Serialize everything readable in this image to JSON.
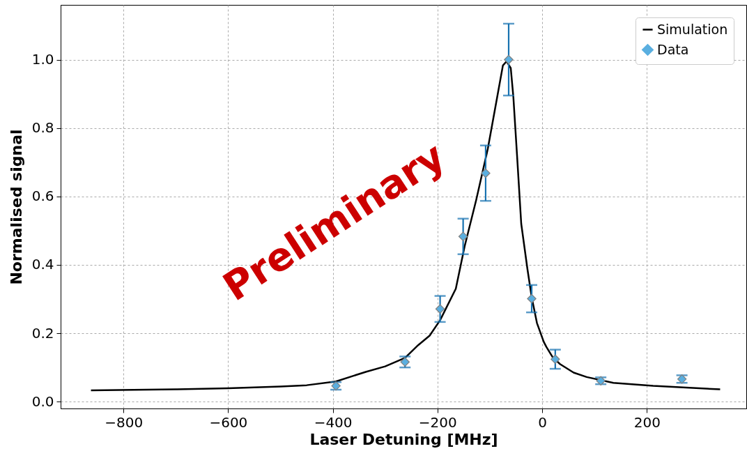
{
  "chart_data": {
    "type": "scatter",
    "xlabel": "Laser Detuning [MHz]",
    "ylabel": "Normalised signal",
    "annotations": [
      "Preliminary"
    ],
    "xlim": [
      -920,
      390
    ],
    "ylim": [
      -0.02,
      1.16
    ],
    "xticks": [
      -800,
      -600,
      -400,
      -200,
      0,
      200
    ],
    "yticks": [
      {
        "value": 0,
        "label": "0.0"
      },
      0.2,
      0.4,
      0.6,
      0.8,
      {
        "value": 1,
        "label": "1.0"
      }
    ],
    "grid": true,
    "legend": "top right",
    "series": [
      {
        "name": "Simulation",
        "type": "line",
        "color": "#000000",
        "line_style": "solid",
        "x": [
          -862,
          -700,
          -600,
          -500,
          -450,
          -394,
          -337,
          -300,
          -262,
          -237,
          -215,
          -195,
          -165,
          -148,
          -126,
          -104,
          -86,
          -75,
          -68,
          -60,
          -55,
          -48,
          -40,
          -28,
          -20,
          -10,
          3,
          8,
          20,
          34,
          60,
          85,
          136,
          212,
          340
        ],
        "values": [
          0.033,
          0.036,
          0.039,
          0.044,
          0.048,
          0.059,
          0.087,
          0.103,
          0.128,
          0.165,
          0.193,
          0.238,
          0.33,
          0.455,
          0.59,
          0.738,
          0.89,
          0.983,
          0.995,
          0.975,
          0.89,
          0.72,
          0.52,
          0.386,
          0.305,
          0.23,
          0.175,
          0.16,
          0.13,
          0.11,
          0.085,
          0.072,
          0.055,
          0.046,
          0.036
        ]
      },
      {
        "name": "Data",
        "color": "#5aafe0",
        "marker": "diamond",
        "x": [
          -394,
          -262,
          -195,
          -151,
          -108,
          -64,
          -20,
          25,
          112,
          267
        ],
        "values": [
          0.046,
          0.116,
          0.271,
          0.483,
          0.668,
          1.0,
          0.301,
          0.124,
          0.061,
          0.066
        ],
        "errors": [
          0.011,
          0.016,
          0.038,
          0.052,
          0.081,
          0.105,
          0.04,
          0.028,
          0.01,
          0.011
        ]
      }
    ]
  }
}
